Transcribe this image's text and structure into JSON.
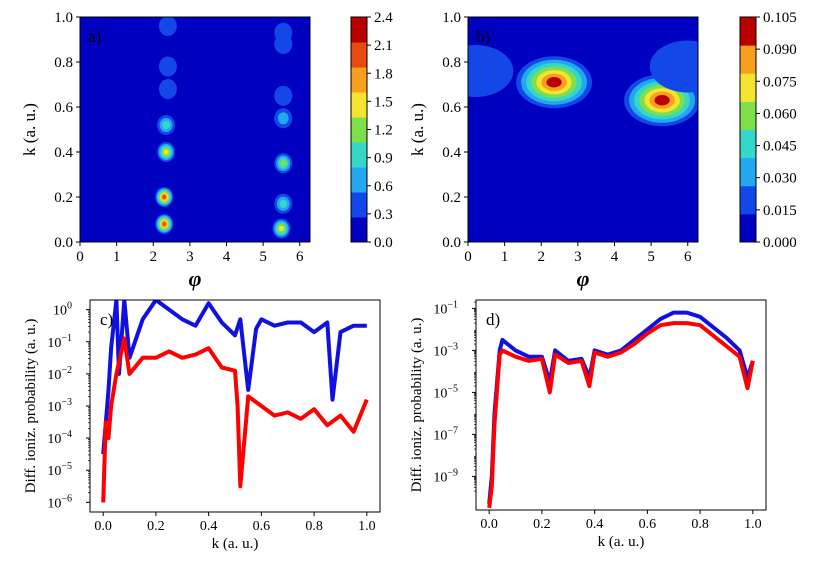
{
  "chart_data": [
    {
      "type": "heatmap",
      "panel_label": "a)",
      "xlabel": "φ",
      "ylabel": "k (a. u.)",
      "xlim": [
        0,
        6.28
      ],
      "ylim": [
        0,
        1.0
      ],
      "xticks": [
        "0",
        "1",
        "2",
        "3",
        "4",
        "5",
        "6"
      ],
      "yticks": [
        "0.0",
        "0.2",
        "0.4",
        "0.6",
        "0.8",
        "1.0"
      ],
      "colorbar": {
        "ticks": [
          "0.0",
          "0.3",
          "0.6",
          "0.9",
          "1.2",
          "1.5",
          "1.8",
          "2.1",
          "2.4"
        ],
        "levels": [
          "#0000c0",
          "#1447e8",
          "#23a8f0",
          "#35d8c8",
          "#7de04a",
          "#f4e430",
          "#f7a020",
          "#e84a10",
          "#b80000"
        ]
      },
      "blobs": [
        {
          "phi": 2.3,
          "k": 0.2,
          "peak": 2.2
        },
        {
          "phi": 2.35,
          "k": 0.4,
          "peak": 1.6
        },
        {
          "phi": 2.35,
          "k": 0.52,
          "peak": 0.8
        },
        {
          "phi": 2.4,
          "k": 0.68,
          "peak": 0.4
        },
        {
          "phi": 2.4,
          "k": 0.78,
          "peak": 0.3
        },
        {
          "phi": 2.4,
          "k": 0.96,
          "peak": 0.35
        },
        {
          "phi": 5.55,
          "k": 0.35,
          "peak": 1.3
        },
        {
          "phi": 5.55,
          "k": 0.17,
          "peak": 1.0
        },
        {
          "phi": 5.55,
          "k": 0.55,
          "peak": 0.5
        },
        {
          "phi": 5.55,
          "k": 0.65,
          "peak": 0.4
        },
        {
          "phi": 5.55,
          "k": 0.88,
          "peak": 0.4
        },
        {
          "phi": 5.55,
          "k": 0.93,
          "peak": 0.3
        },
        {
          "phi": 2.3,
          "k": 0.08,
          "peak": 2.0
        },
        {
          "phi": 5.5,
          "k": 0.06,
          "peak": 1.5
        }
      ]
    },
    {
      "type": "heatmap",
      "panel_label": "b)",
      "xlabel": "φ",
      "ylabel": "k (a. u.)",
      "xlim": [
        0,
        6.28
      ],
      "ylim": [
        0,
        1.0
      ],
      "xticks": [
        "0",
        "1",
        "2",
        "3",
        "4",
        "5",
        "6"
      ],
      "yticks": [
        "0.0",
        "0.2",
        "0.4",
        "0.6",
        "0.8",
        "1.0"
      ],
      "colorbar": {
        "ticks": [
          "0.000",
          "0.015",
          "0.030",
          "0.045",
          "0.060",
          "0.075",
          "0.090",
          "0.105"
        ],
        "levels": [
          "#0000c0",
          "#1447e8",
          "#23a8f0",
          "#35d8c8",
          "#7de04a",
          "#f4e430",
          "#f7a020",
          "#b80000"
        ]
      },
      "blobs": [
        {
          "phi": 2.35,
          "k": 0.71,
          "peak": 0.1
        },
        {
          "phi": 5.3,
          "k": 0.63,
          "peak": 0.1
        },
        {
          "phi": 0.2,
          "k": 0.76,
          "peak": 0.02
        },
        {
          "phi": 6.0,
          "k": 0.78,
          "peak": 0.02
        }
      ]
    },
    {
      "type": "line",
      "panel_label": "c)",
      "xlabel": "k (a. u.)",
      "ylabel": "Diff. ioniz. probability (a. u.)",
      "yscale": "log",
      "xlim": [
        -0.05,
        1.05
      ],
      "ylim_exp": [
        -6.3,
        0.3
      ],
      "xticks": [
        "0.0",
        "0.2",
        "0.4",
        "0.6",
        "0.8",
        "1.0"
      ],
      "yticks": [
        "10",
        "10",
        "10",
        "10",
        "10",
        "10",
        "10"
      ],
      "ytick_exps": [
        "0",
        "−1",
        "−2",
        "−3",
        "−4",
        "−5",
        "−6"
      ],
      "series": [
        {
          "name": "blue",
          "color": "#1010e0",
          "x": [
            0.0,
            0.02,
            0.03,
            0.05,
            0.06,
            0.08,
            0.1,
            0.15,
            0.2,
            0.25,
            0.3,
            0.35,
            0.4,
            0.45,
            0.5,
            0.52,
            0.55,
            0.58,
            0.6,
            0.65,
            0.7,
            0.75,
            0.8,
            0.85,
            0.87,
            0.9,
            0.95,
            1.0
          ],
          "log_y": [
            -4.5,
            -2.5,
            -1.2,
            0.3,
            -2.0,
            0.3,
            -1.5,
            -0.3,
            0.3,
            0.0,
            -0.3,
            -0.5,
            0.2,
            -0.4,
            -0.8,
            -0.3,
            -2.5,
            -0.6,
            -0.3,
            -0.5,
            -0.4,
            -0.4,
            -0.7,
            -0.4,
            -2.8,
            -0.7,
            -0.5,
            -0.5
          ]
        },
        {
          "name": "red",
          "color": "#ff0000",
          "x": [
            0.0,
            0.01,
            0.02,
            0.03,
            0.05,
            0.08,
            0.1,
            0.15,
            0.2,
            0.25,
            0.3,
            0.35,
            0.4,
            0.45,
            0.5,
            0.51,
            0.52,
            0.55,
            0.6,
            0.65,
            0.7,
            0.75,
            0.8,
            0.85,
            0.9,
            0.95,
            1.0
          ],
          "log_y": [
            -6.0,
            -3.5,
            -4.0,
            -3.0,
            -2.0,
            -0.9,
            -2.0,
            -1.5,
            -1.5,
            -1.3,
            -1.5,
            -1.4,
            -1.2,
            -1.8,
            -1.9,
            -3.0,
            -5.5,
            -2.7,
            -3.0,
            -3.3,
            -3.2,
            -3.4,
            -3.1,
            -3.6,
            -3.3,
            -3.8,
            -2.8
          ]
        }
      ]
    },
    {
      "type": "line",
      "panel_label": "d)",
      "xlabel": "k (a. u.)",
      "ylabel": "Diff. ioniz. probability (a. u.)",
      "yscale": "log",
      "xlim": [
        -0.05,
        1.05
      ],
      "ylim_exp": [
        -10.6,
        -0.6
      ],
      "xticks": [
        "0.0",
        "0.2",
        "0.4",
        "0.6",
        "0.8",
        "1.0"
      ],
      "yticks": [
        "10",
        "10",
        "10",
        "10",
        "10"
      ],
      "ytick_exps": [
        "−1",
        "−3",
        "−5",
        "−7",
        "−9"
      ],
      "series": [
        {
          "name": "blue",
          "color": "#1010e0",
          "x": [
            0.0,
            0.01,
            0.02,
            0.04,
            0.05,
            0.1,
            0.15,
            0.2,
            0.23,
            0.25,
            0.3,
            0.35,
            0.38,
            0.4,
            0.45,
            0.5,
            0.55,
            0.6,
            0.65,
            0.7,
            0.75,
            0.8,
            0.85,
            0.9,
            0.95,
            0.98,
            1.0
          ],
          "log_y": [
            -10.3,
            -9.0,
            -6.0,
            -3.0,
            -2.5,
            -3.0,
            -3.3,
            -3.3,
            -4.5,
            -3.0,
            -3.5,
            -3.4,
            -4.3,
            -3.0,
            -3.2,
            -3.0,
            -2.5,
            -2.0,
            -1.5,
            -1.2,
            -1.2,
            -1.4,
            -1.9,
            -2.4,
            -3.0,
            -4.3,
            -3.5
          ]
        },
        {
          "name": "red",
          "color": "#ff0000",
          "x": [
            0.0,
            0.01,
            0.02,
            0.04,
            0.05,
            0.1,
            0.15,
            0.2,
            0.23,
            0.25,
            0.3,
            0.35,
            0.38,
            0.4,
            0.45,
            0.5,
            0.55,
            0.6,
            0.65,
            0.7,
            0.75,
            0.8,
            0.85,
            0.9,
            0.95,
            0.98,
            1.0
          ],
          "log_y": [
            -10.5,
            -9.5,
            -6.5,
            -3.2,
            -3.0,
            -3.3,
            -3.5,
            -3.4,
            -5.0,
            -3.2,
            -3.6,
            -3.5,
            -4.7,
            -3.1,
            -3.3,
            -3.1,
            -2.7,
            -2.2,
            -1.8,
            -1.7,
            -1.7,
            -1.8,
            -2.3,
            -2.8,
            -3.3,
            -4.8,
            -3.5
          ]
        }
      ]
    }
  ]
}
